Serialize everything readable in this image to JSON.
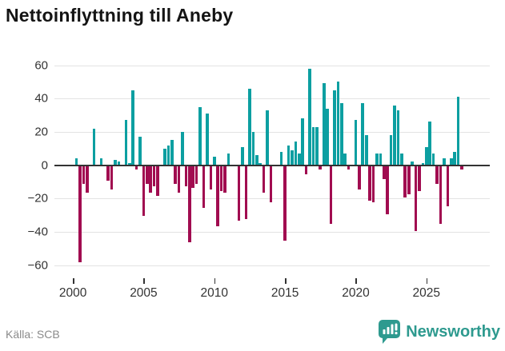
{
  "header": {
    "title": "Nettoinflyttning till Aneby"
  },
  "footer": {
    "source_label": "Källa: SCB",
    "brand_name": "Newsworthy"
  },
  "colors": {
    "positive_bar": "#0c9fa1",
    "negative_bar": "#a10c50",
    "axis": "#333333",
    "grid": "#e3e3e3",
    "tick_text": "#333333",
    "muted_text": "#8a8a8a",
    "brand_teal": "#2e9a8f"
  },
  "chart_data": {
    "type": "bar",
    "title": "Nettoinflyttning till Aneby",
    "xlabel": "",
    "ylabel": "",
    "x_unit": "quarter",
    "period_start": "2000",
    "period_end": "2025",
    "ylim": [
      -60,
      60
    ],
    "grid": true,
    "y_ticks": [
      60,
      40,
      20,
      0,
      -20,
      -40,
      -60
    ],
    "x_tick_labels": [
      "2000",
      "2005",
      "2010",
      "2015",
      "2020",
      "2025"
    ],
    "series_name": "Nettoinflyttning",
    "values": [
      0,
      4,
      -58,
      -11,
      -16,
      0,
      22,
      0,
      4,
      0,
      -9,
      -14,
      3,
      2,
      0,
      27,
      1,
      45,
      -2,
      17,
      -30,
      -11,
      -16,
      -12,
      -18,
      0,
      10,
      12,
      15,
      -11,
      -16,
      20,
      -12,
      -46,
      -13,
      -11,
      35,
      -25,
      31,
      -14,
      5,
      -36,
      -15,
      -16,
      7,
      0,
      0,
      -33,
      11,
      -32,
      46,
      20,
      6,
      1,
      -16,
      33,
      -22,
      0,
      0,
      8,
      -45,
      12,
      9,
      14,
      7,
      28,
      -5,
      58,
      23,
      23,
      -2,
      49,
      34,
      -35,
      45,
      50,
      37,
      7,
      -2,
      0,
      27,
      -14,
      37,
      18,
      -21,
      -22,
      7,
      7,
      -8,
      -29,
      18,
      36,
      33,
      7,
      -19,
      -17,
      2,
      -39,
      -15,
      1,
      11,
      26,
      7,
      -11,
      -35,
      4,
      -24,
      4,
      8,
      41,
      -2
    ],
    "source": "SCB"
  }
}
